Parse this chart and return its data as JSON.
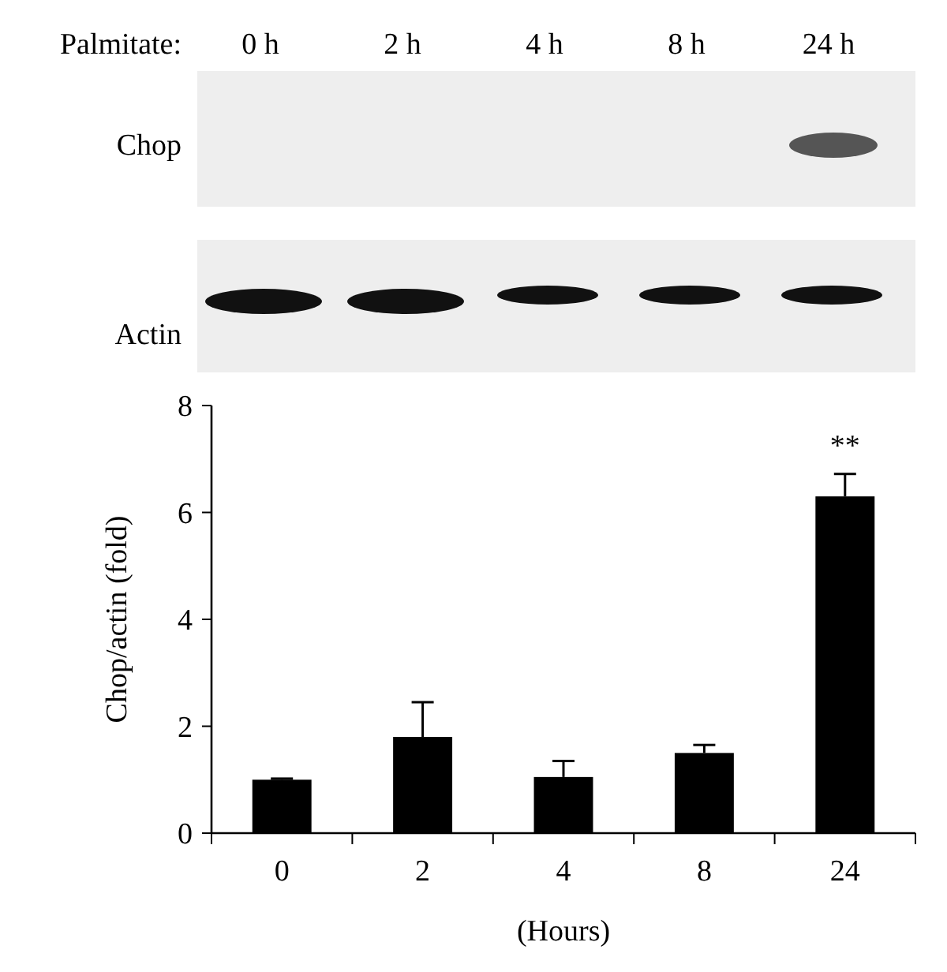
{
  "chart_data": {
    "type": "bar",
    "ylabel": "Chop/actin (fold)",
    "xlabel": "(Hours)",
    "categories": [
      "0",
      "2",
      "4",
      "8",
      "24"
    ],
    "values": [
      1.0,
      1.8,
      1.05,
      1.5,
      6.3
    ],
    "errors": [
      0.02,
      0.65,
      0.3,
      0.15,
      0.42
    ],
    "color": "#000000",
    "ylim": [
      0,
      8
    ],
    "yticks": [
      0,
      2,
      4,
      6,
      8
    ],
    "annotations": [
      "Palmitate:",
      "0 h",
      "2 h",
      "4 h",
      "8 h",
      "24 h",
      "Chop",
      "Actin",
      "**"
    ]
  }
}
